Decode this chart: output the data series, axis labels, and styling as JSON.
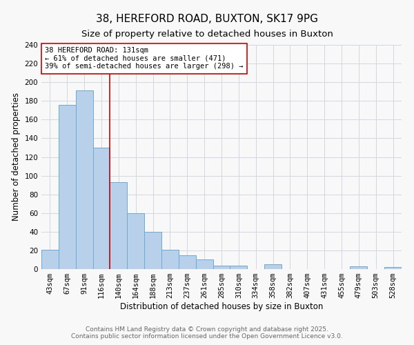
{
  "title": "38, HEREFORD ROAD, BUXTON, SK17 9PG",
  "subtitle": "Size of property relative to detached houses in Buxton",
  "xlabel": "Distribution of detached houses by size in Buxton",
  "ylabel": "Number of detached properties",
  "categories": [
    "43sqm",
    "67sqm",
    "91sqm",
    "116sqm",
    "140sqm",
    "164sqm",
    "188sqm",
    "213sqm",
    "237sqm",
    "261sqm",
    "285sqm",
    "310sqm",
    "334sqm",
    "358sqm",
    "382sqm",
    "407sqm",
    "431sqm",
    "455sqm",
    "479sqm",
    "503sqm",
    "528sqm"
  ],
  "values": [
    21,
    176,
    191,
    130,
    93,
    60,
    40,
    21,
    15,
    10,
    4,
    4,
    0,
    5,
    0,
    0,
    0,
    0,
    3,
    0,
    2
  ],
  "bar_color": "#b8d0ea",
  "bar_edge_color": "#6aaad4",
  "property_line_x": 3.5,
  "property_line_color": "#cc0000",
  "annotation_text": "38 HEREFORD ROAD: 131sqm\n← 61% of detached houses are smaller (471)\n39% of semi-detached houses are larger (298) →",
  "annotation_box_color": "#ffffff",
  "annotation_box_edge_color": "#cc0000",
  "ylim": [
    0,
    240
  ],
  "yticks": [
    0,
    20,
    40,
    60,
    80,
    100,
    120,
    140,
    160,
    180,
    200,
    220,
    240
  ],
  "footer_line1": "Contains HM Land Registry data © Crown copyright and database right 2025.",
  "footer_line2": "Contains public sector information licensed under the Open Government Licence v3.0.",
  "background_color": "#f8f8f8",
  "grid_color": "#d0d8e0",
  "title_fontsize": 11,
  "subtitle_fontsize": 9.5,
  "axis_label_fontsize": 8.5,
  "tick_fontsize": 7.5,
  "annotation_fontsize": 7.5,
  "footer_fontsize": 6.5
}
